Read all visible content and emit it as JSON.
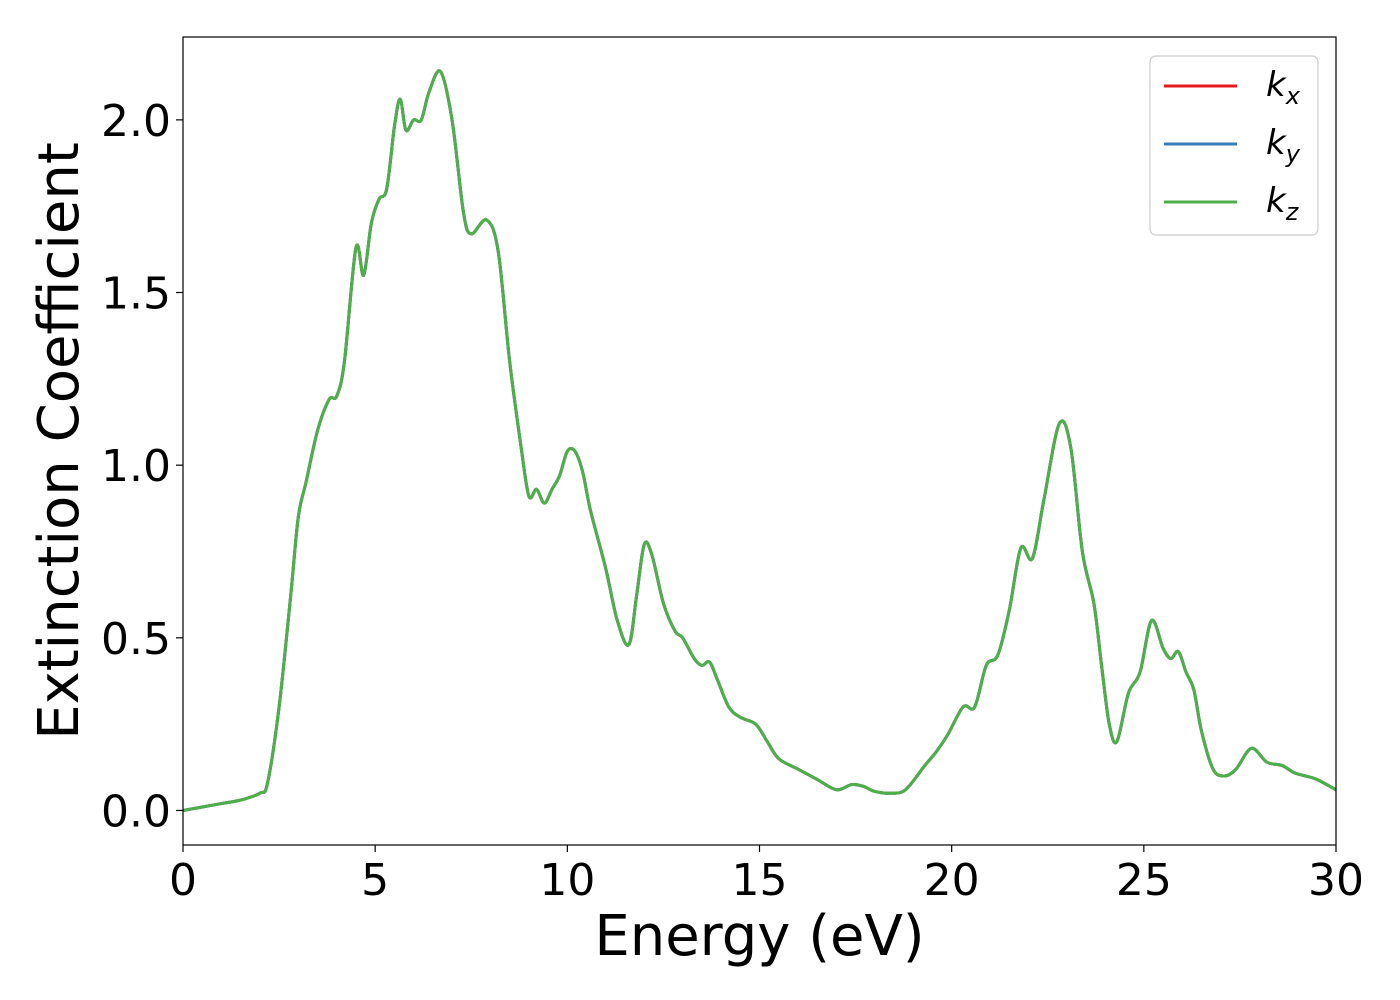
{
  "chart_data": {
    "type": "line",
    "xlabel": "Energy (eV)",
    "ylabel": "Extinction Coefficient",
    "xlim": [
      0,
      30
    ],
    "ylim": [
      -0.1,
      2.24
    ],
    "x_ticks": [
      "0",
      "5",
      "10",
      "15",
      "20",
      "25",
      "30"
    ],
    "y_ticks": [
      "0.0",
      "0.5",
      "1.0",
      "1.5",
      "2.0"
    ],
    "legend_position": "top-right",
    "grid": false,
    "series": [
      {
        "name": "k",
        "subscript": "x",
        "color": "#e41a1c"
      },
      {
        "name": "k",
        "subscript": "y",
        "color": "#377eb8"
      },
      {
        "name": "k",
        "subscript": "z",
        "color": "#4daf4a"
      }
    ],
    "x": [
      0,
      1,
      1.5,
      2,
      2.2,
      2.5,
      2.8,
      3.0,
      3.2,
      3.5,
      3.8,
      4.0,
      4.2,
      4.5,
      4.7,
      4.9,
      5.1,
      5.3,
      5.5,
      5.65,
      5.8,
      6.0,
      6.2,
      6.4,
      6.7,
      7.0,
      7.3,
      7.5,
      7.9,
      8.2,
      8.5,
      8.8,
      9.0,
      9.2,
      9.4,
      9.6,
      9.8,
      10.0,
      10.2,
      10.4,
      10.6,
      11.0,
      11.3,
      11.6,
      11.8,
      12.0,
      12.2,
      12.5,
      12.8,
      13.0,
      13.3,
      13.5,
      13.7,
      13.9,
      14.2,
      14.5,
      14.9,
      15.2,
      15.5,
      16.0,
      16.5,
      17.0,
      17.4,
      17.7,
      18.0,
      18.4,
      18.8,
      19.3,
      19.6,
      19.9,
      20.3,
      20.6,
      20.9,
      21.2,
      21.5,
      21.8,
      22.1,
      22.4,
      22.8,
      23.1,
      23.4,
      23.7,
      23.9,
      24.1,
      24.3,
      24.6,
      24.9,
      25.2,
      25.5,
      25.7,
      25.9,
      26.1,
      26.3,
      26.5,
      26.8,
      27.1,
      27.4,
      27.8,
      28.2,
      28.6,
      28.9,
      29.2,
      29.5,
      30
    ]
  },
  "values_k": [
    0.0,
    0.02,
    0.03,
    0.05,
    0.08,
    0.3,
    0.62,
    0.85,
    0.95,
    1.1,
    1.19,
    1.2,
    1.3,
    1.63,
    1.55,
    1.7,
    1.77,
    1.8,
    1.98,
    2.06,
    1.97,
    2.0,
    2.0,
    2.08,
    2.14,
    2.0,
    1.73,
    1.67,
    1.71,
    1.62,
    1.3,
    1.05,
    0.91,
    0.93,
    0.89,
    0.93,
    0.97,
    1.04,
    1.04,
    0.98,
    0.87,
    0.7,
    0.55,
    0.48,
    0.62,
    0.77,
    0.74,
    0.6,
    0.52,
    0.5,
    0.44,
    0.42,
    0.43,
    0.38,
    0.3,
    0.27,
    0.25,
    0.2,
    0.15,
    0.12,
    0.09,
    0.06,
    0.075,
    0.07,
    0.055,
    0.05,
    0.06,
    0.13,
    0.17,
    0.22,
    0.3,
    0.3,
    0.42,
    0.45,
    0.58,
    0.76,
    0.73,
    0.9,
    1.12,
    1.05,
    0.75,
    0.6,
    0.42,
    0.25,
    0.2,
    0.34,
    0.4,
    0.55,
    0.47,
    0.44,
    0.46,
    0.4,
    0.35,
    0.23,
    0.12,
    0.1,
    0.12,
    0.18,
    0.14,
    0.13,
    0.11,
    0.1,
    0.09,
    0.06
  ]
}
